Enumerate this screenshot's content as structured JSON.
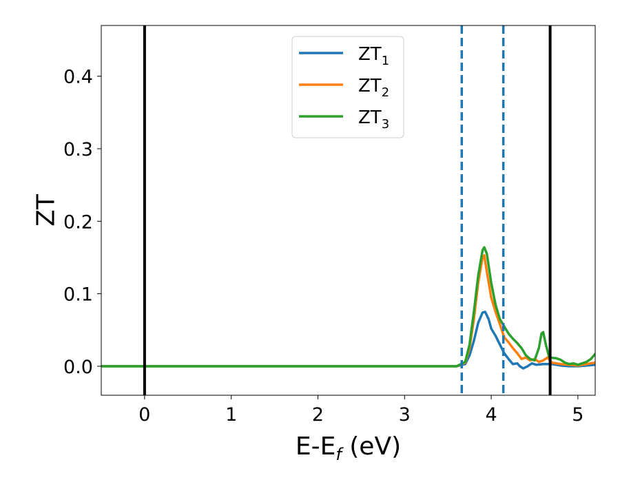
{
  "chart_data": {
    "type": "line",
    "xlabel": "E-E_f (eV)",
    "ylabel": "ZT",
    "xlim": [
      -0.5,
      5.2
    ],
    "ylim": [
      -0.04,
      0.47
    ],
    "x_ticks": [
      0,
      1,
      2,
      3,
      4,
      5
    ],
    "y_ticks": [
      0.0,
      0.1,
      0.2,
      0.3,
      0.4
    ],
    "x_tick_labels": [
      "0",
      "1",
      "2",
      "3",
      "4",
      "5"
    ],
    "y_tick_labels": [
      "0.0",
      "0.1",
      "0.2",
      "0.3",
      "0.4"
    ],
    "grid": false,
    "legend_position": "top-center",
    "vertical_lines": [
      {
        "x": 0.0,
        "style": "solid",
        "color": "#000000"
      },
      {
        "x": 4.68,
        "style": "solid",
        "color": "#000000"
      },
      {
        "x": 3.66,
        "style": "dashed",
        "color": "#1f77b4"
      },
      {
        "x": 4.14,
        "style": "dashed",
        "color": "#1f77b4"
      }
    ],
    "series": [
      {
        "name": "ZT_1",
        "legend_base": "ZT",
        "legend_sub": "1",
        "color": "#1f77b4",
        "points": [
          [
            -0.5,
            0
          ],
          [
            3.6,
            0
          ],
          [
            3.7,
            0.003
          ],
          [
            3.75,
            0.015
          ],
          [
            3.8,
            0.035
          ],
          [
            3.85,
            0.06
          ],
          [
            3.9,
            0.074
          ],
          [
            3.93,
            0.075
          ],
          [
            3.97,
            0.065
          ],
          [
            4.0,
            0.052
          ],
          [
            4.05,
            0.042
          ],
          [
            4.1,
            0.03
          ],
          [
            4.15,
            0.018
          ],
          [
            4.2,
            0.01
          ],
          [
            4.25,
            0.003
          ],
          [
            4.3,
            0.004
          ],
          [
            4.33,
            0.0
          ],
          [
            4.37,
            -0.003
          ],
          [
            4.42,
            0.0
          ],
          [
            4.47,
            0.004
          ],
          [
            4.52,
            0.002
          ],
          [
            4.6,
            0.003
          ],
          [
            4.7,
            0.003
          ],
          [
            4.8,
            0.001
          ],
          [
            4.9,
            0.0
          ],
          [
            5.0,
            0.0
          ],
          [
            5.1,
            0.001
          ],
          [
            5.2,
            0.002
          ]
        ]
      },
      {
        "name": "ZT_2",
        "legend_base": "ZT",
        "legend_sub": "2",
        "color": "#ff7f0e",
        "points": [
          [
            -0.5,
            0
          ],
          [
            3.6,
            0
          ],
          [
            3.7,
            0.005
          ],
          [
            3.75,
            0.025
          ],
          [
            3.8,
            0.065
          ],
          [
            3.85,
            0.115
          ],
          [
            3.9,
            0.15
          ],
          [
            3.92,
            0.153
          ],
          [
            3.95,
            0.13
          ],
          [
            4.0,
            0.095
          ],
          [
            4.05,
            0.075
          ],
          [
            4.1,
            0.058
          ],
          [
            4.15,
            0.04
          ],
          [
            4.2,
            0.033
          ],
          [
            4.25,
            0.025
          ],
          [
            4.3,
            0.018
          ],
          [
            4.35,
            0.01
          ],
          [
            4.4,
            0.012
          ],
          [
            4.45,
            0.008
          ],
          [
            4.5,
            0.01
          ],
          [
            4.55,
            0.006
          ],
          [
            4.6,
            0.008
          ],
          [
            4.65,
            0.012
          ],
          [
            4.7,
            0.005
          ],
          [
            4.8,
            0.003
          ],
          [
            4.9,
            0.002
          ],
          [
            5.0,
            0.001
          ],
          [
            5.1,
            0.003
          ],
          [
            5.2,
            0.005
          ]
        ]
      },
      {
        "name": "ZT_3",
        "legend_base": "ZT",
        "legend_sub": "3",
        "color": "#2ca02c",
        "points": [
          [
            -0.5,
            0
          ],
          [
            3.6,
            0
          ],
          [
            3.7,
            0.006
          ],
          [
            3.75,
            0.03
          ],
          [
            3.8,
            0.075
          ],
          [
            3.85,
            0.125
          ],
          [
            3.9,
            0.16
          ],
          [
            3.92,
            0.164
          ],
          [
            3.95,
            0.155
          ],
          [
            4.0,
            0.115
          ],
          [
            4.05,
            0.085
          ],
          [
            4.1,
            0.065
          ],
          [
            4.15,
            0.055
          ],
          [
            4.2,
            0.045
          ],
          [
            4.25,
            0.038
          ],
          [
            4.3,
            0.032
          ],
          [
            4.35,
            0.025
          ],
          [
            4.4,
            0.015
          ],
          [
            4.45,
            0.01
          ],
          [
            4.5,
            0.008
          ],
          [
            4.55,
            0.025
          ],
          [
            4.58,
            0.045
          ],
          [
            4.6,
            0.047
          ],
          [
            4.63,
            0.03
          ],
          [
            4.67,
            0.012
          ],
          [
            4.75,
            0.011
          ],
          [
            4.8,
            0.009
          ],
          [
            4.85,
            0.005
          ],
          [
            4.9,
            0.003
          ],
          [
            4.95,
            0.004
          ],
          [
            5.0,
            0.002
          ],
          [
            5.05,
            0.004
          ],
          [
            5.1,
            0.006
          ],
          [
            5.15,
            0.01
          ],
          [
            5.2,
            0.017
          ]
        ]
      }
    ]
  }
}
